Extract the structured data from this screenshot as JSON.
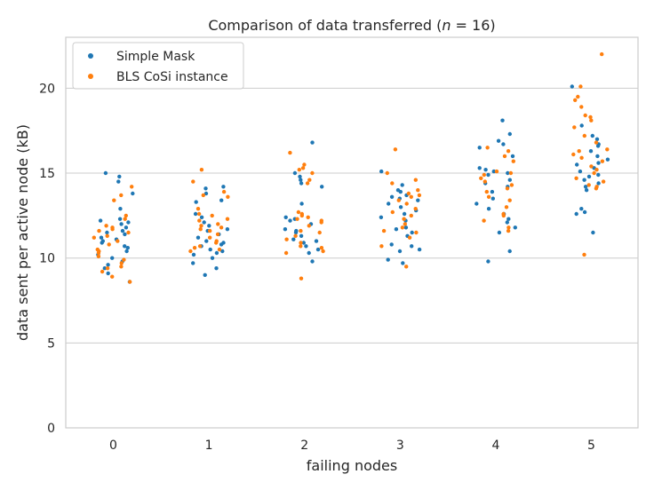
{
  "chart_data": {
    "type": "scatter",
    "title": "Comparison of data transferred (n = 16)",
    "title_parts": {
      "prefix": "Comparison of data transferred (",
      "var": "n",
      "suffix": " = 16)"
    },
    "xlabel": "failing nodes",
    "ylabel": "data sent per active node (kB)",
    "categories": [
      "0",
      "1",
      "2",
      "3",
      "4",
      "5"
    ],
    "yticks": [
      "0",
      "5",
      "10",
      "15",
      "20"
    ],
    "ylim": [
      0,
      23.0
    ],
    "grid": true,
    "legend_position": "top-left",
    "series": [
      {
        "name": "Simple Mask",
        "color": "#1f77b4",
        "points": [
          [
            0,
            14.8
          ],
          [
            0,
            15.0
          ],
          [
            0,
            14.5
          ],
          [
            0,
            13.8
          ],
          [
            0,
            12.9
          ],
          [
            0,
            12.3
          ],
          [
            0,
            12.2
          ],
          [
            0,
            12.1
          ],
          [
            0,
            12.0
          ],
          [
            0,
            11.8
          ],
          [
            0,
            11.6
          ],
          [
            0,
            11.5
          ],
          [
            0,
            11.4
          ],
          [
            0,
            11.2
          ],
          [
            0,
            11.1
          ],
          [
            0,
            11.0
          ],
          [
            0,
            10.9
          ],
          [
            0,
            10.7
          ],
          [
            0,
            10.6
          ],
          [
            0,
            10.4
          ],
          [
            0,
            10.2
          ],
          [
            0,
            10.0
          ],
          [
            0,
            9.8
          ],
          [
            0,
            9.6
          ],
          [
            0,
            9.4
          ],
          [
            0,
            9.1
          ],
          [
            0,
            8.6
          ],
          [
            1,
            14.2
          ],
          [
            1,
            14.1
          ],
          [
            1,
            13.8
          ],
          [
            1,
            13.4
          ],
          [
            1,
            13.3
          ],
          [
            1,
            12.6
          ],
          [
            1,
            12.4
          ],
          [
            1,
            12.1
          ],
          [
            1,
            11.9
          ],
          [
            1,
            11.7
          ],
          [
            1,
            11.6
          ],
          [
            1,
            11.4
          ],
          [
            1,
            11.2
          ],
          [
            1,
            11.0
          ],
          [
            1,
            10.9
          ],
          [
            1,
            10.8
          ],
          [
            1,
            10.7
          ],
          [
            1,
            10.5
          ],
          [
            1,
            10.4
          ],
          [
            1,
            10.3
          ],
          [
            1,
            10.2
          ],
          [
            1,
            10.0
          ],
          [
            1,
            9.7
          ],
          [
            1,
            9.4
          ],
          [
            1,
            9.0
          ],
          [
            2,
            16.8
          ],
          [
            2,
            15.0
          ],
          [
            2,
            14.8
          ],
          [
            2,
            14.6
          ],
          [
            2,
            14.4
          ],
          [
            2,
            14.2
          ],
          [
            2,
            13.2
          ],
          [
            2,
            12.4
          ],
          [
            2,
            12.3
          ],
          [
            2,
            12.2
          ],
          [
            2,
            12.0
          ],
          [
            2,
            11.7
          ],
          [
            2,
            11.6
          ],
          [
            2,
            11.5
          ],
          [
            2,
            11.3
          ],
          [
            2,
            11.1
          ],
          [
            2,
            11.0
          ],
          [
            2,
            10.9
          ],
          [
            2,
            10.7
          ],
          [
            2,
            10.5
          ],
          [
            2,
            10.3
          ],
          [
            2,
            9.8
          ],
          [
            3,
            15.1
          ],
          [
            3,
            14.3
          ],
          [
            3,
            14.0
          ],
          [
            3,
            13.9
          ],
          [
            3,
            13.7
          ],
          [
            3,
            13.6
          ],
          [
            3,
            13.5
          ],
          [
            3,
            13.4
          ],
          [
            3,
            13.2
          ],
          [
            3,
            13.0
          ],
          [
            3,
            12.8
          ],
          [
            3,
            12.6
          ],
          [
            3,
            12.4
          ],
          [
            3,
            12.2
          ],
          [
            3,
            11.8
          ],
          [
            3,
            11.7
          ],
          [
            3,
            11.5
          ],
          [
            3,
            11.3
          ],
          [
            3,
            10.8
          ],
          [
            3,
            10.7
          ],
          [
            3,
            10.5
          ],
          [
            3,
            10.4
          ],
          [
            3,
            9.9
          ],
          [
            3,
            9.7
          ],
          [
            4,
            18.1
          ],
          [
            4,
            17.3
          ],
          [
            4,
            16.9
          ],
          [
            4,
            16.7
          ],
          [
            4,
            16.5
          ],
          [
            4,
            16.0
          ],
          [
            4,
            15.3
          ],
          [
            4,
            15.2
          ],
          [
            4,
            15.1
          ],
          [
            4,
            15.0
          ],
          [
            4,
            14.9
          ],
          [
            4,
            14.6
          ],
          [
            4,
            14.4
          ],
          [
            4,
            14.2
          ],
          [
            4,
            13.9
          ],
          [
            4,
            13.5
          ],
          [
            4,
            13.2
          ],
          [
            4,
            12.9
          ],
          [
            4,
            12.6
          ],
          [
            4,
            12.3
          ],
          [
            4,
            12.1
          ],
          [
            4,
            11.8
          ],
          [
            4,
            11.5
          ],
          [
            4,
            10.4
          ],
          [
            4,
            9.8
          ],
          [
            5,
            20.1
          ],
          [
            5,
            17.8
          ],
          [
            5,
            17.2
          ],
          [
            5,
            17.0
          ],
          [
            5,
            16.7
          ],
          [
            5,
            16.6
          ],
          [
            5,
            16.3
          ],
          [
            5,
            16.0
          ],
          [
            5,
            15.8
          ],
          [
            5,
            15.6
          ],
          [
            5,
            15.5
          ],
          [
            5,
            15.3
          ],
          [
            5,
            15.1
          ],
          [
            5,
            14.9
          ],
          [
            5,
            14.8
          ],
          [
            5,
            14.6
          ],
          [
            5,
            14.4
          ],
          [
            5,
            14.2
          ],
          [
            5,
            14.0
          ],
          [
            5,
            12.9
          ],
          [
            5,
            12.7
          ],
          [
            5,
            12.6
          ],
          [
            5,
            11.5
          ]
        ]
      },
      {
        "name": "BLS CoSi instance",
        "color": "#ff7f0e",
        "points": [
          [
            0,
            14.2
          ],
          [
            0,
            13.7
          ],
          [
            0,
            13.4
          ],
          [
            0,
            12.5
          ],
          [
            0,
            12.3
          ],
          [
            0,
            11.9
          ],
          [
            0,
            11.8
          ],
          [
            0,
            11.7
          ],
          [
            0,
            11.6
          ],
          [
            0,
            11.5
          ],
          [
            0,
            11.3
          ],
          [
            0,
            11.2
          ],
          [
            0,
            11.0
          ],
          [
            0,
            10.8
          ],
          [
            0,
            10.5
          ],
          [
            0,
            10.4
          ],
          [
            0,
            10.3
          ],
          [
            0,
            10.1
          ],
          [
            0,
            9.9
          ],
          [
            0,
            9.7
          ],
          [
            0,
            9.5
          ],
          [
            0,
            9.4
          ],
          [
            0,
            9.2
          ],
          [
            0,
            8.9
          ],
          [
            0,
            8.6
          ],
          [
            1,
            15.2
          ],
          [
            1,
            14.5
          ],
          [
            1,
            13.9
          ],
          [
            1,
            13.7
          ],
          [
            1,
            13.6
          ],
          [
            1,
            12.9
          ],
          [
            1,
            12.6
          ],
          [
            1,
            12.5
          ],
          [
            1,
            12.3
          ],
          [
            1,
            12.2
          ],
          [
            1,
            12.0
          ],
          [
            1,
            11.9
          ],
          [
            1,
            11.8
          ],
          [
            1,
            11.7
          ],
          [
            1,
            11.6
          ],
          [
            1,
            11.4
          ],
          [
            1,
            11.2
          ],
          [
            1,
            11.0
          ],
          [
            1,
            10.9
          ],
          [
            1,
            10.7
          ],
          [
            1,
            10.6
          ],
          [
            1,
            10.5
          ],
          [
            1,
            10.4
          ],
          [
            2,
            16.2
          ],
          [
            2,
            15.5
          ],
          [
            2,
            15.3
          ],
          [
            2,
            15.2
          ],
          [
            2,
            15.0
          ],
          [
            2,
            14.6
          ],
          [
            2,
            14.4
          ],
          [
            2,
            12.7
          ],
          [
            2,
            12.6
          ],
          [
            2,
            12.5
          ],
          [
            2,
            12.4
          ],
          [
            2,
            12.3
          ],
          [
            2,
            12.2
          ],
          [
            2,
            12.1
          ],
          [
            2,
            11.9
          ],
          [
            2,
            11.6
          ],
          [
            2,
            11.5
          ],
          [
            2,
            11.3
          ],
          [
            2,
            11.1
          ],
          [
            2,
            10.9
          ],
          [
            2,
            10.7
          ],
          [
            2,
            10.6
          ],
          [
            2,
            10.4
          ],
          [
            2,
            10.3
          ],
          [
            2,
            8.8
          ],
          [
            3,
            16.4
          ],
          [
            3,
            15.0
          ],
          [
            3,
            14.6
          ],
          [
            3,
            14.4
          ],
          [
            3,
            14.0
          ],
          [
            3,
            13.8
          ],
          [
            3,
            13.7
          ],
          [
            3,
            13.6
          ],
          [
            3,
            13.4
          ],
          [
            3,
            13.2
          ],
          [
            3,
            12.9
          ],
          [
            3,
            12.7
          ],
          [
            3,
            12.5
          ],
          [
            3,
            12.3
          ],
          [
            3,
            12.0
          ],
          [
            3,
            11.8
          ],
          [
            3,
            11.6
          ],
          [
            3,
            11.5
          ],
          [
            3,
            11.2
          ],
          [
            3,
            10.7
          ],
          [
            3,
            9.5
          ],
          [
            4,
            16.5
          ],
          [
            4,
            16.3
          ],
          [
            4,
            16.0
          ],
          [
            4,
            15.7
          ],
          [
            4,
            15.1
          ],
          [
            4,
            15.0
          ],
          [
            4,
            14.9
          ],
          [
            4,
            14.7
          ],
          [
            4,
            14.5
          ],
          [
            4,
            14.3
          ],
          [
            4,
            14.1
          ],
          [
            4,
            13.9
          ],
          [
            4,
            13.6
          ],
          [
            4,
            13.4
          ],
          [
            4,
            13.0
          ],
          [
            4,
            12.6
          ],
          [
            4,
            12.5
          ],
          [
            4,
            12.2
          ],
          [
            4,
            11.8
          ],
          [
            4,
            11.6
          ],
          [
            5,
            22.0
          ],
          [
            5,
            20.1
          ],
          [
            5,
            19.5
          ],
          [
            5,
            19.3
          ],
          [
            5,
            18.9
          ],
          [
            5,
            18.4
          ],
          [
            5,
            18.3
          ],
          [
            5,
            18.1
          ],
          [
            5,
            17.7
          ],
          [
            5,
            17.2
          ],
          [
            5,
            16.8
          ],
          [
            5,
            16.4
          ],
          [
            5,
            16.3
          ],
          [
            5,
            16.1
          ],
          [
            5,
            15.9
          ],
          [
            5,
            15.7
          ],
          [
            5,
            15.4
          ],
          [
            5,
            15.2
          ],
          [
            5,
            15.0
          ],
          [
            5,
            14.7
          ],
          [
            5,
            14.5
          ],
          [
            5,
            14.3
          ],
          [
            5,
            14.2
          ],
          [
            5,
            14.1
          ],
          [
            5,
            10.2
          ]
        ]
      }
    ]
  }
}
